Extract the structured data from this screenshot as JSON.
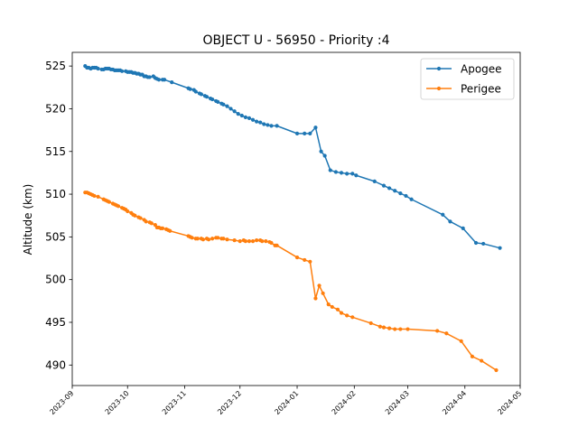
{
  "chart_data": {
    "type": "line",
    "title": "OBJECT U - 56950 - Priority :4",
    "xlabel": "",
    "ylabel": "Altitude (km)",
    "x_type": "date",
    "xlim": [
      "2023-09-01",
      "2024-05-01"
    ],
    "ylim": [
      487.6,
      526.6
    ],
    "x_ticks": [
      "2023-09",
      "2023-10",
      "2023-11",
      "2023-12",
      "2024-01",
      "2024-02",
      "2024-03",
      "2024-04",
      "2024-05"
    ],
    "x_tick_dates": [
      "2023-09-01",
      "2023-10-01",
      "2023-11-01",
      "2023-12-01",
      "2024-01-01",
      "2024-02-01",
      "2024-03-01",
      "2024-04-01",
      "2024-05-01"
    ],
    "y_ticks": [
      490,
      495,
      500,
      505,
      510,
      515,
      520,
      525
    ],
    "grid": false,
    "legend_position": "top-right",
    "series": [
      {
        "name": "Apogee",
        "color": "#1f77b4",
        "marker": "circle",
        "points": [
          [
            "2023-09-08",
            525.0
          ],
          [
            "2023-09-09",
            524.8
          ],
          [
            "2023-09-10",
            524.8
          ],
          [
            "2023-09-11",
            524.7
          ],
          [
            "2023-09-12",
            524.8
          ],
          [
            "2023-09-13",
            524.8
          ],
          [
            "2023-09-14",
            524.8
          ],
          [
            "2023-09-15",
            524.7
          ],
          [
            "2023-09-17",
            524.6
          ],
          [
            "2023-09-18",
            524.6
          ],
          [
            "2023-09-19",
            524.7
          ],
          [
            "2023-09-20",
            524.7
          ],
          [
            "2023-09-21",
            524.7
          ],
          [
            "2023-09-22",
            524.6
          ],
          [
            "2023-09-23",
            524.6
          ],
          [
            "2023-09-24",
            524.5
          ],
          [
            "2023-09-25",
            524.5
          ],
          [
            "2023-09-26",
            524.5
          ],
          [
            "2023-09-27",
            524.5
          ],
          [
            "2023-09-28",
            524.4
          ],
          [
            "2023-09-30",
            524.4
          ],
          [
            "2023-10-01",
            524.3
          ],
          [
            "2023-10-02",
            524.3
          ],
          [
            "2023-10-03",
            524.3
          ],
          [
            "2023-10-04",
            524.2
          ],
          [
            "2023-10-05",
            524.2
          ],
          [
            "2023-10-06",
            524.1
          ],
          [
            "2023-10-07",
            524.1
          ],
          [
            "2023-10-08",
            524.0
          ],
          [
            "2023-10-09",
            524.0
          ],
          [
            "2023-10-10",
            523.8
          ],
          [
            "2023-10-11",
            523.8
          ],
          [
            "2023-10-12",
            523.7
          ],
          [
            "2023-10-13",
            523.7
          ],
          [
            "2023-10-15",
            523.8
          ],
          [
            "2023-10-16",
            523.6
          ],
          [
            "2023-10-17",
            523.5
          ],
          [
            "2023-10-18",
            523.4
          ],
          [
            "2023-10-20",
            523.4
          ],
          [
            "2023-10-21",
            523.4
          ],
          [
            "2023-10-25",
            523.1
          ],
          [
            "2023-11-03",
            522.4
          ],
          [
            "2023-11-04",
            522.3
          ],
          [
            "2023-11-06",
            522.2
          ],
          [
            "2023-11-07",
            522.0
          ],
          [
            "2023-11-09",
            521.8
          ],
          [
            "2023-11-10",
            521.7
          ],
          [
            "2023-11-12",
            521.5
          ],
          [
            "2023-11-13",
            521.4
          ],
          [
            "2023-11-15",
            521.2
          ],
          [
            "2023-11-16",
            521.1
          ],
          [
            "2023-11-18",
            520.9
          ],
          [
            "2023-11-19",
            520.8
          ],
          [
            "2023-11-21",
            520.6
          ],
          [
            "2023-11-22",
            520.5
          ],
          [
            "2023-11-24",
            520.3
          ],
          [
            "2023-11-26",
            520.0
          ],
          [
            "2023-11-28",
            519.7
          ],
          [
            "2023-11-30",
            519.4
          ],
          [
            "2023-12-02",
            519.2
          ],
          [
            "2023-12-04",
            519.0
          ],
          [
            "2023-12-06",
            518.9
          ],
          [
            "2023-12-08",
            518.7
          ],
          [
            "2023-12-10",
            518.5
          ],
          [
            "2023-12-12",
            518.4
          ],
          [
            "2023-12-14",
            518.2
          ],
          [
            "2023-12-16",
            518.1
          ],
          [
            "2023-12-18",
            518.0
          ],
          [
            "2023-12-21",
            518.0
          ],
          [
            "2024-01-01",
            517.1
          ],
          [
            "2024-01-05",
            517.1
          ],
          [
            "2024-01-08",
            517.1
          ],
          [
            "2024-01-11",
            517.8
          ],
          [
            "2024-01-14",
            515.0
          ],
          [
            "2024-01-16",
            514.5
          ],
          [
            "2024-01-19",
            512.8
          ],
          [
            "2024-01-22",
            512.6
          ],
          [
            "2024-01-25",
            512.5
          ],
          [
            "2024-01-28",
            512.4
          ],
          [
            "2024-01-31",
            512.4
          ],
          [
            "2024-02-02",
            512.2
          ],
          [
            "2024-02-12",
            511.5
          ],
          [
            "2024-02-17",
            511.0
          ],
          [
            "2024-02-20",
            510.7
          ],
          [
            "2024-02-23",
            510.4
          ],
          [
            "2024-02-26",
            510.1
          ],
          [
            "2024-02-29",
            509.8
          ],
          [
            "2024-03-03",
            509.4
          ],
          [
            "2024-03-20",
            507.6
          ],
          [
            "2024-03-24",
            506.8
          ],
          [
            "2024-03-31",
            506.0
          ],
          [
            "2024-04-07",
            504.3
          ],
          [
            "2024-04-11",
            504.2
          ],
          [
            "2024-04-20",
            503.7
          ]
        ]
      },
      {
        "name": "Perigee",
        "color": "#ff7f0e",
        "marker": "circle",
        "points": [
          [
            "2023-09-08",
            510.2
          ],
          [
            "2023-09-09",
            510.2
          ],
          [
            "2023-09-10",
            510.1
          ],
          [
            "2023-09-11",
            510.0
          ],
          [
            "2023-09-12",
            509.9
          ],
          [
            "2023-09-13",
            509.8
          ],
          [
            "2023-09-15",
            509.7
          ],
          [
            "2023-09-18",
            509.4
          ],
          [
            "2023-09-19",
            509.3
          ],
          [
            "2023-09-20",
            509.2
          ],
          [
            "2023-09-21",
            509.1
          ],
          [
            "2023-09-23",
            508.9
          ],
          [
            "2023-09-24",
            508.8
          ],
          [
            "2023-09-25",
            508.7
          ],
          [
            "2023-09-26",
            508.6
          ],
          [
            "2023-09-28",
            508.4
          ],
          [
            "2023-09-29",
            508.3
          ],
          [
            "2023-09-30",
            508.2
          ],
          [
            "2023-10-01",
            508.0
          ],
          [
            "2023-10-03",
            507.8
          ],
          [
            "2023-10-04",
            507.6
          ],
          [
            "2023-10-05",
            507.5
          ],
          [
            "2023-10-07",
            507.3
          ],
          [
            "2023-10-08",
            507.2
          ],
          [
            "2023-10-10",
            507.0
          ],
          [
            "2023-10-11",
            506.8
          ],
          [
            "2023-10-13",
            506.7
          ],
          [
            "2023-10-14",
            506.6
          ],
          [
            "2023-10-16",
            506.4
          ],
          [
            "2023-10-17",
            506.1
          ],
          [
            "2023-10-18",
            506.1
          ],
          [
            "2023-10-19",
            506.0
          ],
          [
            "2023-10-20",
            506.0
          ],
          [
            "2023-10-22",
            505.9
          ],
          [
            "2023-10-23",
            505.8
          ],
          [
            "2023-10-24",
            505.7
          ],
          [
            "2023-11-03",
            505.1
          ],
          [
            "2023-11-04",
            505.0
          ],
          [
            "2023-11-05",
            504.9
          ],
          [
            "2023-11-07",
            504.8
          ],
          [
            "2023-11-08",
            504.8
          ],
          [
            "2023-11-10",
            504.8
          ],
          [
            "2023-11-11",
            504.7
          ],
          [
            "2023-11-13",
            504.8
          ],
          [
            "2023-11-14",
            504.7
          ],
          [
            "2023-11-16",
            504.8
          ],
          [
            "2023-11-18",
            504.9
          ],
          [
            "2023-11-19",
            504.9
          ],
          [
            "2023-11-21",
            504.8
          ],
          [
            "2023-11-22",
            504.8
          ],
          [
            "2023-11-24",
            504.7
          ],
          [
            "2023-11-28",
            504.6
          ],
          [
            "2023-12-01",
            504.5
          ],
          [
            "2023-12-03",
            504.6
          ],
          [
            "2023-12-04",
            504.5
          ],
          [
            "2023-12-06",
            504.5
          ],
          [
            "2023-12-08",
            504.5
          ],
          [
            "2023-12-10",
            504.6
          ],
          [
            "2023-12-12",
            504.6
          ],
          [
            "2023-12-13",
            504.5
          ],
          [
            "2023-12-15",
            504.5
          ],
          [
            "2023-12-17",
            504.4
          ],
          [
            "2023-12-18",
            504.3
          ],
          [
            "2023-12-20",
            504.0
          ],
          [
            "2023-12-21",
            504.0
          ],
          [
            "2024-01-01",
            502.6
          ],
          [
            "2024-01-05",
            502.3
          ],
          [
            "2024-01-08",
            502.1
          ],
          [
            "2024-01-11",
            497.8
          ],
          [
            "2024-01-13",
            499.3
          ],
          [
            "2024-01-15",
            498.4
          ],
          [
            "2024-01-18",
            497.1
          ],
          [
            "2024-01-20",
            496.8
          ],
          [
            "2024-01-23",
            496.5
          ],
          [
            "2024-01-25",
            496.1
          ],
          [
            "2024-01-28",
            495.8
          ],
          [
            "2024-01-31",
            495.6
          ],
          [
            "2024-02-10",
            494.9
          ],
          [
            "2024-02-15",
            494.5
          ],
          [
            "2024-02-17",
            494.4
          ],
          [
            "2024-02-20",
            494.3
          ],
          [
            "2024-02-23",
            494.2
          ],
          [
            "2024-02-26",
            494.2
          ],
          [
            "2024-03-01",
            494.2
          ],
          [
            "2024-03-17",
            494.0
          ],
          [
            "2024-03-22",
            493.7
          ],
          [
            "2024-03-30",
            492.8
          ],
          [
            "2024-04-05",
            491.0
          ],
          [
            "2024-04-10",
            490.5
          ],
          [
            "2024-04-18",
            489.4
          ]
        ]
      }
    ]
  }
}
